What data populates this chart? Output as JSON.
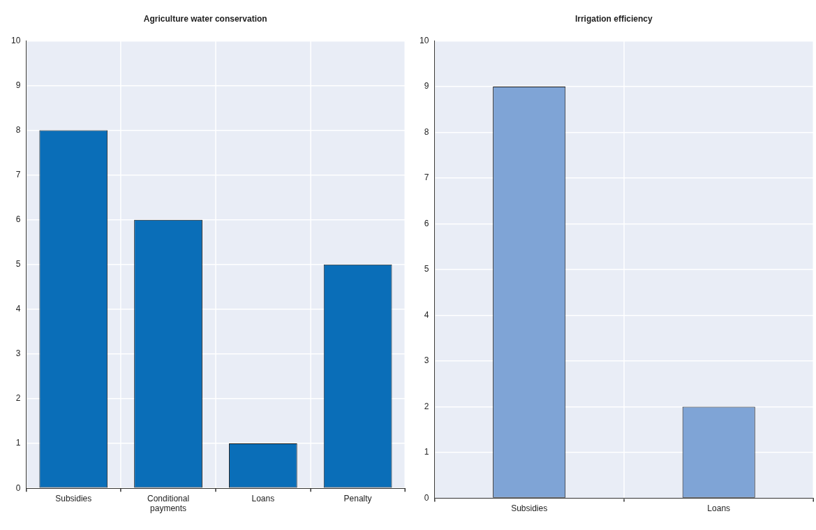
{
  "chart_data": [
    {
      "type": "bar",
      "title": "Agriculture water conservation",
      "categories": [
        "Subsidies",
        "Conditional payments",
        "Loans",
        "Penalty"
      ],
      "values": [
        8,
        6,
        1,
        5
      ],
      "color": "#0a6eb8",
      "ylim": [
        0,
        10
      ],
      "yticks": [
        0,
        1,
        2,
        3,
        4,
        5,
        6,
        7,
        8,
        9,
        10
      ],
      "grid": true
    },
    {
      "type": "bar",
      "title": "Irrigation efficiency",
      "categories": [
        "Subsidies",
        "Loans"
      ],
      "values": [
        9,
        2
      ],
      "color": "#7fa4d6",
      "ylim": [
        0,
        10
      ],
      "yticks": [
        0,
        1,
        2,
        3,
        4,
        5,
        6,
        7,
        8,
        9,
        10
      ],
      "grid": true
    }
  ]
}
